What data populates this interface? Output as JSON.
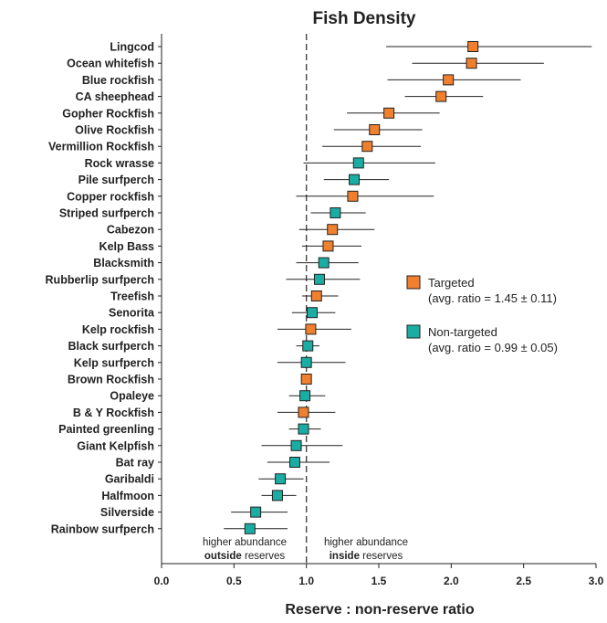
{
  "chart_data": {
    "type": "scatter",
    "title": "Fish Density",
    "xlabel": "Reserve : non-reserve ratio",
    "xlim": [
      0.0,
      3.0
    ],
    "xticks": [
      "0.0",
      "0.5",
      "1.0",
      "1.5",
      "2.0",
      "2.5",
      "3.0"
    ],
    "reference_line_x": 1.0,
    "colors": {
      "Targeted": "#f07f2e",
      "Non-targeted": "#1aada3"
    },
    "legend": {
      "placement": "right",
      "entries": [
        {
          "name": "Targeted",
          "note": "(avg. ratio = 1.45 ± 0.11)"
        },
        {
          "name": "Non-targeted",
          "note": "(avg. ratio = 0.99 ± 0.05)"
        }
      ]
    },
    "annotations": {
      "left": {
        "line1": "higher abundance",
        "bold": "outside",
        "rest": " reserves"
      },
      "right": {
        "line1": "higher abundance",
        "bold": "inside",
        "rest": " reserves"
      }
    },
    "series": [
      {
        "name": "Lingcod",
        "group": "Targeted",
        "ratio": 2.15,
        "low": 1.55,
        "high": 2.97
      },
      {
        "name": "Ocean whitefish",
        "group": "Targeted",
        "ratio": 2.14,
        "low": 1.73,
        "high": 2.64
      },
      {
        "name": "Blue rockfish",
        "group": "Targeted",
        "ratio": 1.98,
        "low": 1.56,
        "high": 2.48
      },
      {
        "name": "CA sheephead",
        "group": "Targeted",
        "ratio": 1.93,
        "low": 1.68,
        "high": 2.22
      },
      {
        "name": "Gopher Rockfish",
        "group": "Targeted",
        "ratio": 1.57,
        "low": 1.28,
        "high": 1.92
      },
      {
        "name": "Olive Rockfish",
        "group": "Targeted",
        "ratio": 1.47,
        "low": 1.19,
        "high": 1.8
      },
      {
        "name": "Vermillion Rockfish",
        "group": "Targeted",
        "ratio": 1.42,
        "low": 1.11,
        "high": 1.79
      },
      {
        "name": "Rock wrasse",
        "group": "Non-targeted",
        "ratio": 1.36,
        "low": 0.98,
        "high": 1.89
      },
      {
        "name": "Pile surfperch",
        "group": "Non-targeted",
        "ratio": 1.33,
        "low": 1.12,
        "high": 1.57
      },
      {
        "name": "Copper rockfish",
        "group": "Targeted",
        "ratio": 1.32,
        "low": 0.93,
        "high": 1.88
      },
      {
        "name": "Striped surfperch",
        "group": "Non-targeted",
        "ratio": 1.2,
        "low": 1.03,
        "high": 1.41
      },
      {
        "name": "Cabezon",
        "group": "Targeted",
        "ratio": 1.18,
        "low": 0.95,
        "high": 1.47
      },
      {
        "name": "Kelp Bass",
        "group": "Targeted",
        "ratio": 1.15,
        "low": 0.97,
        "high": 1.38
      },
      {
        "name": "Blacksmith",
        "group": "Non-targeted",
        "ratio": 1.12,
        "low": 0.93,
        "high": 1.36
      },
      {
        "name": "Rubberlip surfperch",
        "group": "Non-targeted",
        "ratio": 1.09,
        "low": 0.86,
        "high": 1.37
      },
      {
        "name": "Treefish",
        "group": "Targeted",
        "ratio": 1.07,
        "low": 0.97,
        "high": 1.22
      },
      {
        "name": "Senorita",
        "group": "Non-targeted",
        "ratio": 1.04,
        "low": 0.9,
        "high": 1.2
      },
      {
        "name": "Kelp rockfish",
        "group": "Targeted",
        "ratio": 1.03,
        "low": 0.8,
        "high": 1.31
      },
      {
        "name": "Black surfperch",
        "group": "Non-targeted",
        "ratio": 1.01,
        "low": 0.93,
        "high": 1.09
      },
      {
        "name": "Kelp surfperch",
        "group": "Non-targeted",
        "ratio": 1.0,
        "low": 0.8,
        "high": 1.27
      },
      {
        "name": "Brown Rockfish",
        "group": "Targeted",
        "ratio": 1.0,
        "low": 0.97,
        "high": 1.03
      },
      {
        "name": "Opaleye",
        "group": "Non-targeted",
        "ratio": 0.99,
        "low": 0.88,
        "high": 1.13
      },
      {
        "name": "B & Y Rockfish",
        "group": "Targeted",
        "ratio": 0.98,
        "low": 0.8,
        "high": 1.2
      },
      {
        "name": "Painted greenling",
        "group": "Non-targeted",
        "ratio": 0.98,
        "low": 0.88,
        "high": 1.1
      },
      {
        "name": "Giant Kelpfish",
        "group": "Non-targeted",
        "ratio": 0.93,
        "low": 0.69,
        "high": 1.25
      },
      {
        "name": "Bat ray",
        "group": "Non-targeted",
        "ratio": 0.92,
        "low": 0.73,
        "high": 1.16
      },
      {
        "name": "Garibaldi",
        "group": "Non-targeted",
        "ratio": 0.82,
        "low": 0.67,
        "high": 0.98
      },
      {
        "name": "Halfmoon",
        "group": "Non-targeted",
        "ratio": 0.8,
        "low": 0.69,
        "high": 0.93
      },
      {
        "name": "Silverside",
        "group": "Non-targeted",
        "ratio": 0.65,
        "low": 0.48,
        "high": 0.87
      },
      {
        "name": "Rainbow surfperch",
        "group": "Non-targeted",
        "ratio": 0.61,
        "low": 0.43,
        "high": 0.87
      }
    ]
  }
}
